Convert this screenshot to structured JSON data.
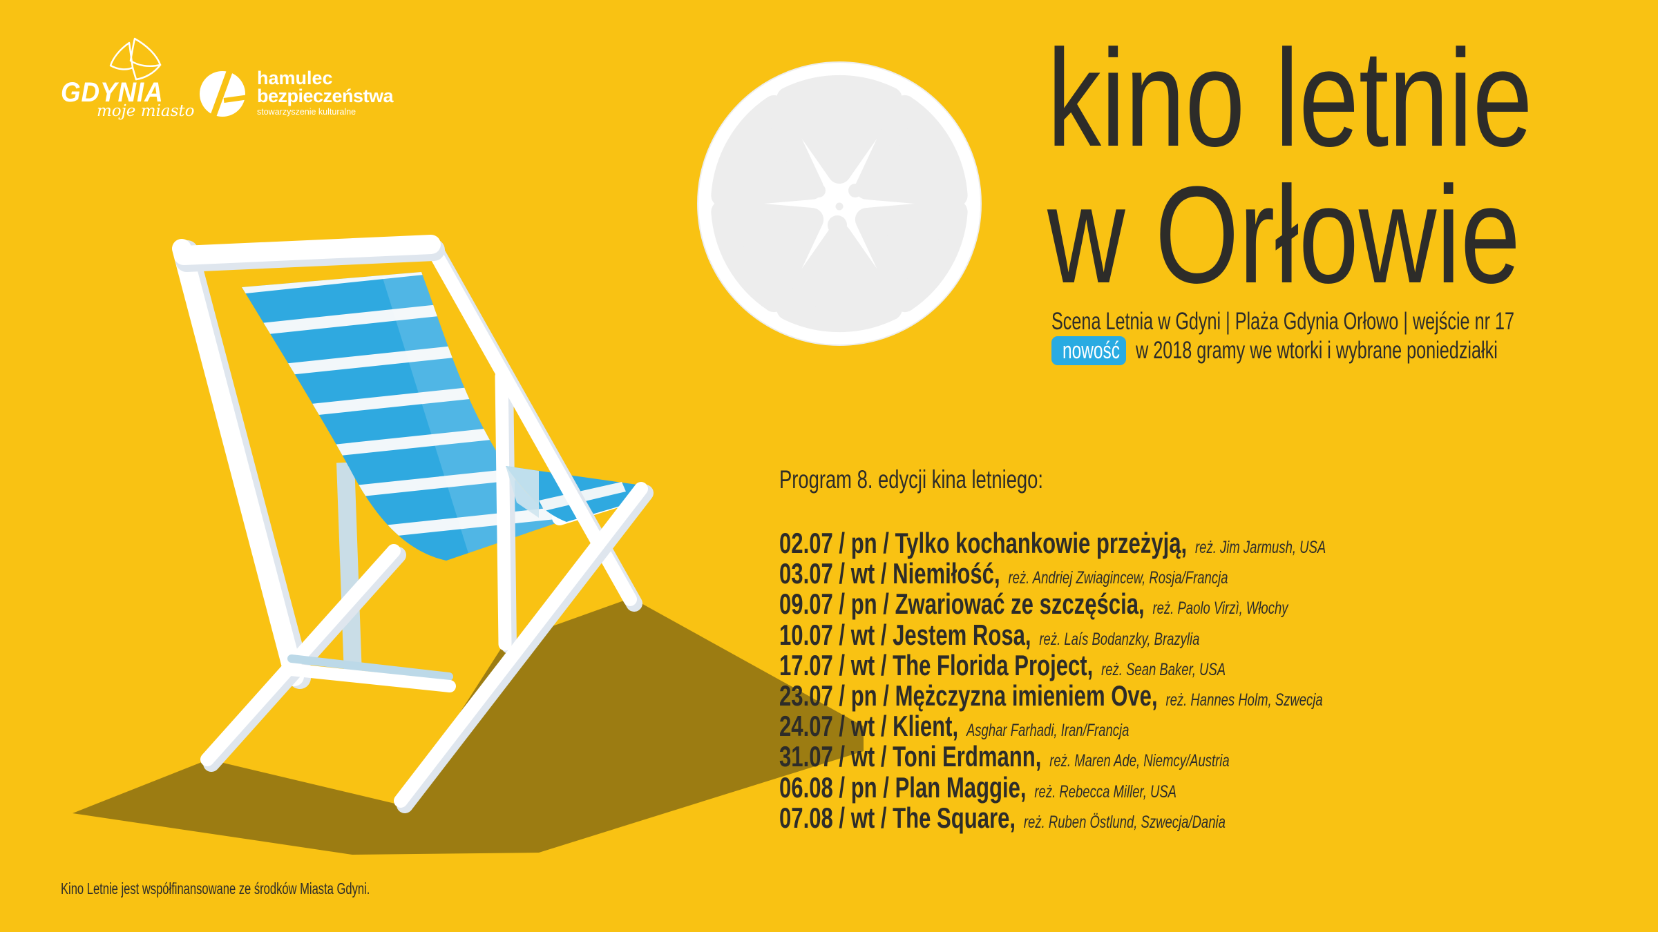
{
  "poster": {
    "background_color": "#f9c213",
    "text_color": "#2d2c29"
  },
  "logos": {
    "gdynia": {
      "name": "GDYNIA",
      "tagline": "moje miasto"
    },
    "hamulec": {
      "name_line1": "hamulec",
      "name_line2": "bezpieczeństwa",
      "subtitle": "stowarzyszenie kulturalne"
    }
  },
  "header": {
    "title_line1": "kino letnie",
    "title_line2": "w Orłowie",
    "subtitle": "Scena Letnia w Gdyni | Plaża Gdynia Orłowo | wejście nr 17",
    "badge_label": "nowość",
    "badge_note": "w 2018 gramy we wtorki i wybrane poniedziałki",
    "badge_color": "#29abe2"
  },
  "program": {
    "heading": "Program 8. edycji kina letniego:",
    "separator": "/",
    "items": [
      {
        "date": "02.07",
        "day": "pn",
        "title": "Tylko kochankowie przeżyją,",
        "credits": "reż. Jim Jarmush, USA"
      },
      {
        "date": "03.07",
        "day": "wt",
        "title": "Niemiłość,",
        "credits": "reż. Andriej Zwiagincew, Rosja/Francja"
      },
      {
        "date": "09.07",
        "day": "pn",
        "title": "Zwariować ze szczęścia,",
        "credits": "reż. Paolo Virzì, Włochy"
      },
      {
        "date": "10.07",
        "day": "wt",
        "title": "Jestem Rosa,",
        "credits": "reż. Laís Bodanzky, Brazylia"
      },
      {
        "date": "17.07",
        "day": "wt",
        "title": "The Florida Project,",
        "credits": "reż. Sean Baker, USA"
      },
      {
        "date": "23.07",
        "day": "pn",
        "title": "Mężczyzna imieniem Ove,",
        "credits": "reż. Hannes Holm, Szwecja"
      },
      {
        "date": "24.07",
        "day": "wt",
        "title": "Klient,",
        "credits": "Asghar Farhadi, Iran/Francja"
      },
      {
        "date": "31.07",
        "day": "wt",
        "title": "Toni Erdmann,",
        "credits": "reż. Maren Ade, Niemcy/Austria"
      },
      {
        "date": "06.08",
        "day": "pn",
        "title": "Plan Maggie,",
        "credits": "reż. Rebecca Miller, USA"
      },
      {
        "date": "07.08",
        "day": "wt",
        "title": "The Square,",
        "credits": "reż. Ruben Östlund, Szwecja/Dania"
      }
    ]
  },
  "footer": {
    "note": "Kino Letnie jest współfinansowane ze środków Miasta Gdyni."
  },
  "illustrations": {
    "film_reel": {
      "color": "#ffffff",
      "cutout_color": "#ededed"
    },
    "deck_chair": {
      "canvas_color": "#2fa9e0",
      "stripe_color": "#f2f7fa",
      "frame_color": "#ffffff",
      "frame_shade_color": "#dfe6ee",
      "shadow_color": "#9c7c12"
    }
  }
}
